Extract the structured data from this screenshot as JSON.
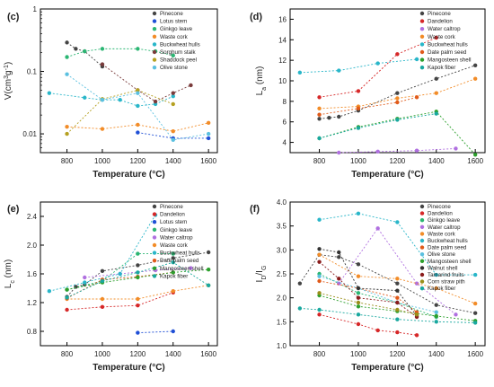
{
  "chart_data": [
    {
      "type": "scatter",
      "panel_label": "(c)",
      "xlabel": "Temperature (°C)",
      "ylabel": "V(cm³g⁻¹)",
      "ylabel_parts": {
        "base": "V",
        "unit_open": "(cm",
        "sup1": "3",
        "mid": "g",
        "sup2": "-1",
        "unit_close": ")"
      },
      "yscale": "log",
      "xlim": [
        650,
        1650
      ],
      "ylim": [
        0.005,
        1
      ],
      "xticks": [
        800,
        1000,
        1200,
        1400,
        1600
      ],
      "yticks": [
        0.01,
        0.1,
        1
      ],
      "ytick_labels": [
        "0.01",
        "0.1",
        "1"
      ],
      "legend_position": "top-right",
      "series": [
        {
          "name": "Pinecone",
          "color": "#444444",
          "x": [
            800,
            850,
            900,
            1000
          ],
          "y": [
            0.29,
            0.23,
            0.21,
            0.12
          ]
        },
        {
          "name": "Lotus stem",
          "color": "#1f4fd6",
          "x": [
            1200,
            1400,
            1600
          ],
          "y": [
            0.0105,
            0.0085,
            0.0085
          ]
        },
        {
          "name": "Ginkgo leave",
          "color": "#2bb673",
          "x": [
            800,
            900,
            1000,
            1200,
            1300,
            1400
          ],
          "y": [
            0.17,
            0.21,
            0.23,
            0.23,
            0.21,
            0.18
          ]
        },
        {
          "name": "Waste cork",
          "color": "#f28c28",
          "x": [
            800,
            1000,
            1200,
            1400,
            1600
          ],
          "y": [
            0.013,
            0.012,
            0.014,
            0.011,
            0.015
          ]
        },
        {
          "name": "Buckwheat hulls",
          "color": "#29b6c9",
          "x": [
            700,
            900,
            1000,
            1100,
            1200,
            1300,
            1400
          ],
          "y": [
            0.045,
            0.038,
            0.035,
            0.035,
            0.028,
            0.03,
            0.04
          ]
        },
        {
          "name": "Sorghum stalk",
          "color": "#7a3b3b",
          "x": [
            1000,
            1200,
            1300,
            1400,
            1500
          ],
          "y": [
            0.13,
            0.05,
            0.033,
            0.045,
            0.06
          ]
        },
        {
          "name": "Shaddock peel",
          "color": "#b5a020",
          "x": [
            800,
            1000,
            1200,
            1400
          ],
          "y": [
            0.01,
            0.036,
            0.05,
            0.03
          ]
        },
        {
          "name": "Olive stone",
          "color": "#5bc0e0",
          "x": [
            800,
            1000,
            1200,
            1400,
            1600
          ],
          "y": [
            0.09,
            0.035,
            0.045,
            0.008,
            0.01
          ]
        }
      ]
    },
    {
      "type": "scatter",
      "panel_label": "(d)",
      "xlabel": "Temperature (°C)",
      "ylabel": "L_a (nm)",
      "ylabel_parts": {
        "base": "L",
        "sub": "a",
        "rest": "(nm)"
      },
      "xlim": [
        650,
        1650
      ],
      "ylim": [
        3,
        17
      ],
      "xticks": [
        800,
        1000,
        1200,
        1400,
        1600
      ],
      "yticks": [
        4,
        6,
        8,
        10,
        12,
        14,
        16
      ],
      "legend_position": "top-right",
      "series": [
        {
          "name": "Pinecone",
          "color": "#444444",
          "x": [
            800,
            850,
            900,
            1000,
            1200,
            1400,
            1600
          ],
          "y": [
            6.3,
            6.4,
            6.5,
            7.1,
            8.8,
            10.2,
            11.5
          ]
        },
        {
          "name": "Dandelion",
          "color": "#d62728",
          "x": [
            800,
            1000,
            1200,
            1400
          ],
          "y": [
            8.4,
            9.0,
            12.6,
            14.2
          ]
        },
        {
          "name": "Water caltrop",
          "color": "#b070e0",
          "x": [
            900,
            1100,
            1300,
            1500
          ],
          "y": [
            3.0,
            3.1,
            3.2,
            3.4
          ]
        },
        {
          "name": "Waste cork",
          "color": "#f28c28",
          "x": [
            800,
            1000,
            1200,
            1400,
            1600
          ],
          "y": [
            7.3,
            7.5,
            8.3,
            8.8,
            10.2
          ]
        },
        {
          "name": "Buckwheat hulls",
          "color": "#29b6c9",
          "x": [
            700,
            900,
            1100,
            1300
          ],
          "y": [
            10.8,
            11.0,
            11.7,
            12.1
          ]
        },
        {
          "name": "Date palm seed",
          "color": "#e05a1a",
          "x": [
            800,
            1000,
            1200,
            1300
          ],
          "y": [
            6.7,
            7.3,
            7.9,
            8.4
          ]
        },
        {
          "name": "Mangosteen shell",
          "color": "#2ca02c",
          "x": [
            800,
            1000,
            1200,
            1400,
            1600
          ],
          "y": [
            4.4,
            5.5,
            6.3,
            7.0,
            2.8
          ]
        },
        {
          "name": "Kapok fiber",
          "color": "#19a89f",
          "x": [
            800,
            1000,
            1200,
            1400
          ],
          "y": [
            4.4,
            5.4,
            6.2,
            6.8
          ]
        }
      ]
    },
    {
      "type": "scatter",
      "panel_label": "(e)",
      "xlabel": "Temperature (°C)",
      "ylabel": "L_c (nm)",
      "ylabel_parts": {
        "base": "L",
        "sub": "c",
        "rest": "(nm)"
      },
      "xlim": [
        650,
        1650
      ],
      "ylim": [
        0.6,
        2.6
      ],
      "xticks": [
        800,
        1000,
        1200,
        1400,
        1600
      ],
      "yticks": [
        0.8,
        1.2,
        1.6,
        2.0,
        2.4
      ],
      "ytick_labels": [
        "0.8",
        "1.2",
        "1.6",
        "2.0",
        "2.4"
      ],
      "legend_position": "top-right",
      "series": [
        {
          "name": "Pinecone",
          "color": "#444444",
          "x": [
            800,
            850,
            900,
            1000,
            1200,
            1400,
            1600
          ],
          "y": [
            1.28,
            1.42,
            1.45,
            1.64,
            1.72,
            1.82,
            1.9
          ]
        },
        {
          "name": "Dandelion",
          "color": "#d62728",
          "x": [
            800,
            1000,
            1200,
            1400
          ],
          "y": [
            1.1,
            1.14,
            1.16,
            1.34
          ]
        },
        {
          "name": "Lotus stem",
          "color": "#1f4fd6",
          "x": [
            1200,
            1400
          ],
          "y": [
            0.78,
            0.8
          ]
        },
        {
          "name": "Ginkgo leave",
          "color": "#2bb673",
          "x": [
            800,
            1000,
            1200,
            1400
          ],
          "y": [
            1.38,
            1.5,
            1.88,
            1.88
          ]
        },
        {
          "name": "Water caltrop",
          "color": "#b070e0",
          "x": [
            900,
            1100,
            1300,
            1500
          ],
          "y": [
            1.55,
            1.6,
            1.65,
            1.68
          ]
        },
        {
          "name": "Waste cork",
          "color": "#f28c28",
          "x": [
            800,
            1000,
            1200,
            1400,
            1600
          ],
          "y": [
            1.25,
            1.25,
            1.25,
            1.36,
            1.44
          ]
        },
        {
          "name": "Buckwheat hulls",
          "color": "#29b6c9",
          "x": [
            700,
            900,
            1100,
            1300
          ],
          "y": [
            1.36,
            1.48,
            1.6,
            2.42
          ]
        },
        {
          "name": "Date palm seed",
          "color": "#e05a1a",
          "x": [
            800,
            1000,
            1200,
            1400
          ],
          "y": [
            1.26,
            1.52,
            1.56,
            1.62
          ]
        },
        {
          "name": "Mangosteen shell",
          "color": "#2ca02c",
          "x": [
            800,
            1000,
            1200,
            1400,
            1600
          ],
          "y": [
            1.38,
            1.48,
            1.55,
            1.62,
            1.66
          ]
        },
        {
          "name": "Kapok fiber",
          "color": "#19a89f",
          "x": [
            800,
            1000,
            1200,
            1400,
            1600
          ],
          "y": [
            1.27,
            1.5,
            1.62,
            1.76,
            1.44
          ]
        }
      ]
    },
    {
      "type": "scatter",
      "panel_label": "(f)",
      "xlabel": "Temperature (°C)",
      "ylabel": "I_D/I_G",
      "ylabel_parts": {
        "a": "I",
        "asub": "D",
        "slash": "/",
        "b": "I",
        "bsub": "G"
      },
      "xlim": [
        650,
        1650
      ],
      "ylim": [
        1.0,
        4.0
      ],
      "xticks": [
        800,
        1000,
        1200,
        1400,
        1600
      ],
      "yticks": [
        1.0,
        1.5,
        2.0,
        2.5,
        3.0,
        3.5,
        4.0
      ],
      "ytick_labels": [
        "1.0",
        "1.5",
        "2.0",
        "2.5",
        "3.0",
        "3.5",
        "4.0"
      ],
      "legend_position": "top-right",
      "series": [
        {
          "name": "Pinecone",
          "color": "#444444",
          "x": [
            700,
            800,
            900,
            1000,
            1200,
            1400,
            1600
          ],
          "y": [
            2.3,
            2.9,
            2.85,
            2.7,
            2.3,
            1.85,
            1.68
          ]
        },
        {
          "name": "Dandelion",
          "color": "#d62728",
          "x": [
            800,
            1000,
            1100,
            1200,
            1300
          ],
          "y": [
            1.65,
            1.45,
            1.32,
            1.28,
            1.22
          ]
        },
        {
          "name": "Ginkgo leave",
          "color": "#2bb673",
          "x": [
            800,
            1000,
            1200,
            1400
          ],
          "y": [
            2.5,
            2.1,
            1.9,
            1.6
          ]
        },
        {
          "name": "Water caltrop",
          "color": "#b070e0",
          "x": [
            900,
            1100,
            1300,
            1500
          ],
          "y": [
            2.3,
            3.45,
            2.3,
            1.65
          ]
        },
        {
          "name": "Waste cork",
          "color": "#f28c28",
          "x": [
            800,
            1000,
            1200,
            1400,
            1600
          ],
          "y": [
            2.9,
            2.45,
            2.4,
            2.2,
            1.88
          ]
        },
        {
          "name": "Buckwheat hulls",
          "color": "#29b6c9",
          "x": [
            800,
            1000,
            1200,
            1400,
            1600
          ],
          "y": [
            3.63,
            3.76,
            3.58,
            2.48,
            2.48
          ]
        },
        {
          "name": "Date palm seed",
          "color": "#e05a1a",
          "x": [
            800,
            1000,
            1200,
            1300
          ],
          "y": [
            2.35,
            2.2,
            2.0,
            1.7
          ]
        },
        {
          "name": "Olive stone",
          "color": "#5bc0e0",
          "x": [
            800,
            1000,
            1200,
            1400
          ],
          "y": [
            2.45,
            2.2,
            1.9,
            1.7
          ]
        },
        {
          "name": "Mangosteen shell",
          "color": "#2ca02c",
          "x": [
            800,
            1000,
            1200,
            1400,
            1600
          ],
          "y": [
            2.05,
            1.82,
            1.72,
            1.62,
            1.52
          ]
        },
        {
          "name": "Walnut shell",
          "color": "#333333",
          "x": [
            800,
            900,
            1000,
            1200,
            1300
          ],
          "y": [
            3.02,
            2.95,
            2.2,
            2.15,
            1.62
          ]
        },
        {
          "name": "Tamarind fruits",
          "color": "#8a1c1c",
          "x": [
            800,
            900,
            1000,
            1200,
            1300
          ],
          "y": [
            2.75,
            2.4,
            2.0,
            1.9,
            1.6
          ]
        },
        {
          "name": "Corn straw pith",
          "color": "#9a8f1a",
          "x": [
            800,
            1000,
            1200,
            1300
          ],
          "y": [
            2.1,
            1.9,
            1.75,
            1.65
          ]
        },
        {
          "name": "Kapok fiber",
          "color": "#19a89f",
          "x": [
            700,
            800,
            1000,
            1200,
            1400,
            1600
          ],
          "y": [
            1.78,
            1.75,
            1.65,
            1.55,
            1.5,
            1.48
          ]
        }
      ]
    }
  ]
}
